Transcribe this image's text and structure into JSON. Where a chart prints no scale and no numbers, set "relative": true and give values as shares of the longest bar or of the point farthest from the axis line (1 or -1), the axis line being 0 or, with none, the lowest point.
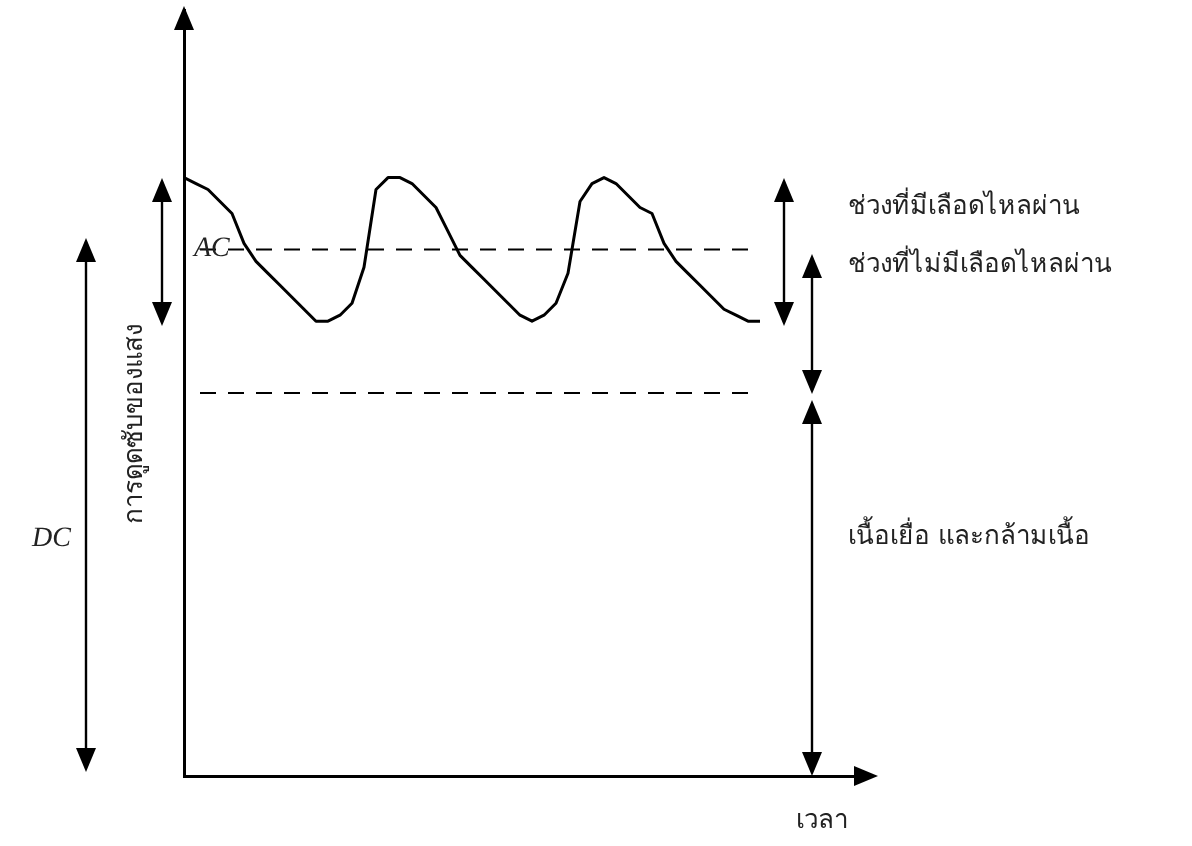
{
  "chart_data": {
    "type": "line",
    "relative": true,
    "xlabel": "เวลา",
    "ylabel": "การดูดซับของแสง",
    "line_style": "solid",
    "categories": [
      null,
      null,
      null,
      null,
      null,
      null,
      null,
      null,
      null,
      null,
      null,
      null,
      null,
      null,
      null,
      null,
      null,
      null,
      null,
      null,
      null,
      null,
      null,
      null,
      null,
      null,
      null,
      null,
      null,
      null,
      null,
      null,
      null,
      null,
      null,
      null,
      null,
      null,
      null,
      null,
      null,
      null,
      null,
      null,
      null,
      null,
      null,
      null,
      null
    ],
    "series": [
      {
        "color": "#000000",
        "values": [
          1.0,
          0.99,
          0.98,
          0.96,
          0.94,
          0.89,
          0.86,
          0.84,
          0.82,
          0.8,
          0.78,
          0.76,
          0.76,
          0.77,
          0.79,
          0.85,
          0.98,
          1.0,
          1.0,
          0.99,
          0.97,
          0.95,
          0.91,
          0.87,
          0.85,
          0.83,
          0.81,
          0.79,
          0.77,
          0.76,
          0.77,
          0.79,
          0.84,
          0.96,
          0.99,
          1.0,
          0.99,
          0.97,
          0.95,
          0.94,
          0.89,
          0.86,
          0.84,
          0.82,
          0.8,
          0.78,
          0.77,
          0.76,
          0.76
        ]
      }
    ],
    "ref_lines": [
      {
        "axis": "y",
        "value": 0.88,
        "line_style": "dashed",
        "color": "#000000"
      },
      {
        "axis": "y",
        "value": 0.64,
        "line_style": "dashed",
        "color": "#000000"
      }
    ],
    "annotations": [
      "AC",
      "DC",
      "ช่วงที่มีเลือดไหลผ่าน",
      "ช่วงที่ไม่มีเลือดไหลผ่าน",
      "เนื้อเยื่อ และกล้ามเนื้อ"
    ]
  }
}
